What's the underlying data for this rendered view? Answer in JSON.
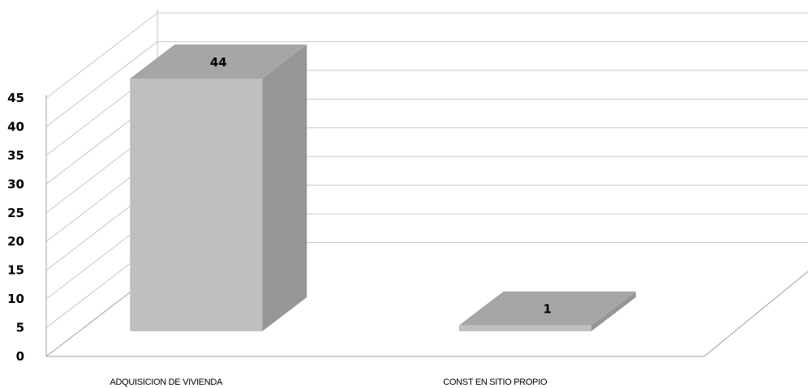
{
  "chart_data": {
    "type": "bar",
    "categories": [
      "ADQUISICION DE VIVIENDA",
      "CONST EN SITIO PROPIO"
    ],
    "values": [
      44,
      1
    ],
    "data_labels": [
      "44",
      "1"
    ],
    "title": "",
    "xlabel": "",
    "ylabel": "",
    "ylim": [
      0,
      45
    ],
    "yticks": [
      "0",
      "5",
      "10",
      "15",
      "20",
      "25",
      "30",
      "35",
      "40",
      "45"
    ],
    "grid": true,
    "three_d": true,
    "legend": "none",
    "colors": {
      "bar_front": "#bfbfbf",
      "bar_side": "#969696",
      "bar_top": "#a6a6a6",
      "gridline": "#c8c8c8",
      "axis": "#a0a0a0"
    }
  }
}
